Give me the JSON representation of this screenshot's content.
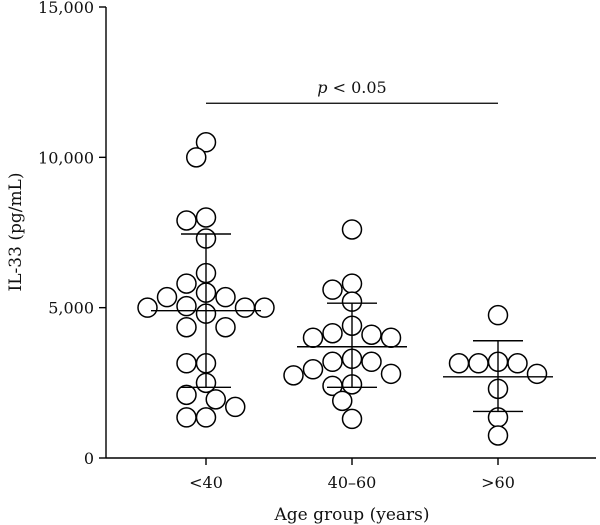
{
  "chart_data": {
    "type": "scatter",
    "title": "",
    "xlabel": "Age group (years)",
    "ylabel": "IL-33 (pg/mL)",
    "ylim": [
      0,
      15000
    ],
    "yticks": [
      0,
      5000,
      10000,
      15000
    ],
    "ytick_labels": [
      "0",
      "5,000",
      "10,000",
      "15,000"
    ],
    "grid": false,
    "categories": [
      "<40",
      "40–60",
      ">60"
    ],
    "groups": [
      {
        "name": "<40",
        "mean": 4900,
        "sd_upper": 7450,
        "sd_lower": 2350,
        "values": [
          10500,
          10000,
          8000,
          7900,
          7300,
          6150,
          5800,
          5500,
          5350,
          5350,
          5050,
          5000,
          5000,
          5000,
          4800,
          4350,
          4350,
          3150,
          3150,
          2500,
          2100,
          1950,
          1700,
          1350,
          1350
        ]
      },
      {
        "name": "40–60",
        "mean": 3700,
        "sd_upper": 5150,
        "sd_lower": 2350,
        "values": [
          7600,
          5800,
          5600,
          5200,
          4400,
          4150,
          4100,
          4000,
          4000,
          3300,
          3200,
          3200,
          2950,
          2800,
          2750,
          2450,
          2400,
          1900,
          1300
        ]
      },
      {
        "name": ">60",
        "mean": 2700,
        "sd_upper": 3900,
        "sd_lower": 1550,
        "values": [
          4750,
          3200,
          3150,
          3150,
          3150,
          2800,
          2300,
          1350,
          750
        ]
      }
    ],
    "annotations": [
      {
        "text": "p < 0.05",
        "from": "<40",
        "to": ">60",
        "y": 11800
      }
    ]
  }
}
